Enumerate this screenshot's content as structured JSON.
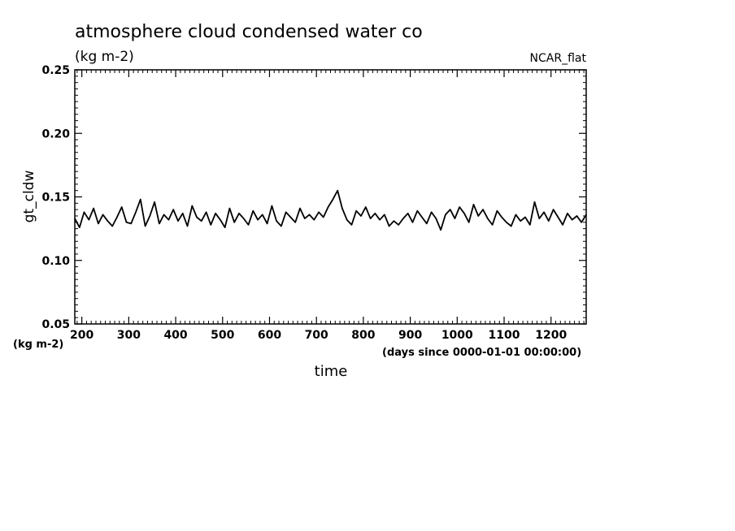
{
  "chart_data": {
    "type": "line",
    "title": "atmosphere cloud condensed water co",
    "subtitle": "(kg m-2)",
    "dataset_label": "NCAR_flat",
    "xlabel": "time",
    "x_units": "(days since 0000-01-01 00:00:00)",
    "ylabel": "gt_cldw",
    "y_units": "(kg m-2)",
    "xlim": [
      185,
      1275
    ],
    "ylim": [
      0.05,
      0.25
    ],
    "x_ticks": [
      "200",
      "300",
      "400",
      "500",
      "600",
      "700",
      "800",
      "900",
      "1000",
      "1100",
      "1200"
    ],
    "y_ticks": [
      "0.05",
      "0.10",
      "0.15",
      "0.20",
      "0.25"
    ],
    "grid": false,
    "series": [
      {
        "x": [
          185,
          195,
          205,
          215,
          225,
          235,
          245,
          255,
          265,
          275,
          285,
          295,
          305,
          315,
          325,
          335,
          345,
          355,
          365,
          375,
          385,
          395,
          405,
          415,
          425,
          435,
          445,
          455,
          465,
          475,
          485,
          495,
          505,
          515,
          525,
          535,
          545,
          555,
          565,
          575,
          585,
          595,
          605,
          615,
          625,
          635,
          645,
          655,
          665,
          675,
          685,
          695,
          705,
          715,
          725,
          735,
          745,
          755,
          765,
          775,
          785,
          795,
          805,
          815,
          825,
          835,
          845,
          855,
          865,
          875,
          885,
          895,
          905,
          915,
          925,
          935,
          945,
          955,
          965,
          975,
          985,
          995,
          1005,
          1015,
          1025,
          1035,
          1045,
          1055,
          1065,
          1075,
          1085,
          1095,
          1105,
          1115,
          1125,
          1135,
          1145,
          1155,
          1165,
          1175,
          1185,
          1195,
          1205,
          1215,
          1225,
          1235,
          1245,
          1255,
          1265,
          1275
        ],
        "y": [
          0.133,
          0.126,
          0.138,
          0.132,
          0.141,
          0.129,
          0.136,
          0.131,
          0.127,
          0.134,
          0.142,
          0.13,
          0.129,
          0.138,
          0.148,
          0.127,
          0.135,
          0.146,
          0.129,
          0.136,
          0.132,
          0.14,
          0.131,
          0.137,
          0.127,
          0.143,
          0.134,
          0.131,
          0.138,
          0.128,
          0.137,
          0.132,
          0.126,
          0.141,
          0.13,
          0.137,
          0.133,
          0.128,
          0.139,
          0.132,
          0.136,
          0.129,
          0.143,
          0.131,
          0.127,
          0.138,
          0.134,
          0.13,
          0.141,
          0.133,
          0.136,
          0.132,
          0.138,
          0.134,
          0.142,
          0.148,
          0.155,
          0.141,
          0.132,
          0.128,
          0.139,
          0.135,
          0.142,
          0.133,
          0.137,
          0.132,
          0.136,
          0.127,
          0.131,
          0.128,
          0.133,
          0.137,
          0.13,
          0.139,
          0.134,
          0.129,
          0.138,
          0.133,
          0.124,
          0.136,
          0.14,
          0.133,
          0.142,
          0.137,
          0.13,
          0.144,
          0.135,
          0.14,
          0.133,
          0.128,
          0.139,
          0.134,
          0.13,
          0.127,
          0.136,
          0.131,
          0.134,
          0.128,
          0.146,
          0.133,
          0.138,
          0.131,
          0.14,
          0.134,
          0.128,
          0.137,
          0.132,
          0.135,
          0.13,
          0.136
        ]
      }
    ]
  }
}
